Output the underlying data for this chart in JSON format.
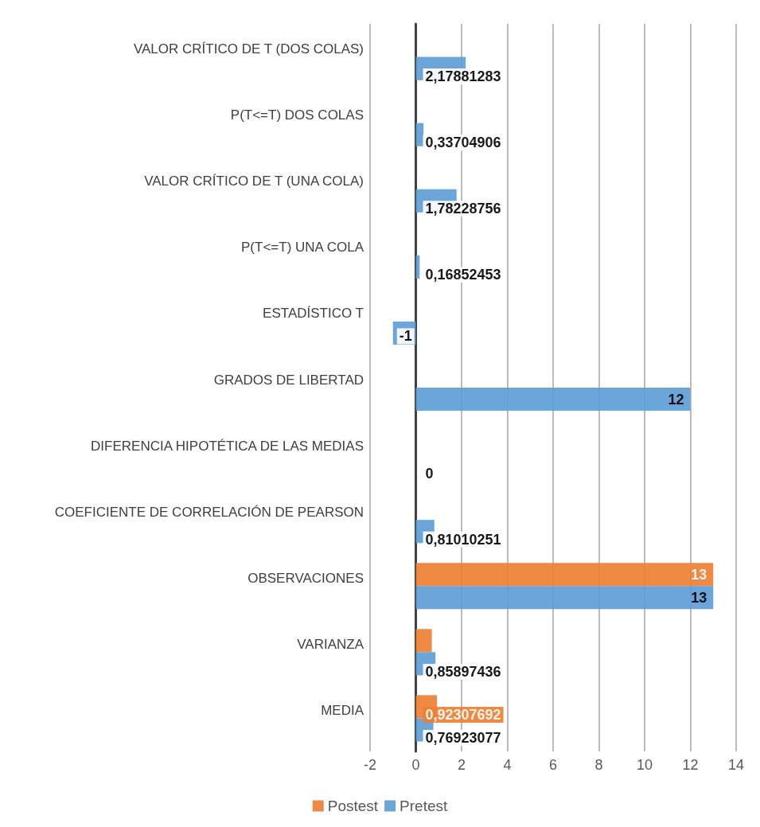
{
  "chart_data": {
    "type": "bar",
    "orientation": "horizontal",
    "categories": [
      "VALOR CRÍTICO DE T (DOS COLAS)",
      "P(T<=T) DOS COLAS",
      "VALOR CRÍTICO DE T (UNA COLA)",
      "P(T<=T) UNA COLA",
      "ESTADÍSTICO T",
      "GRADOS DE LIBERTAD",
      "DIFERENCIA HIPOTÉTICA DE LAS MEDIAS",
      "COEFICIENTE DE CORRELACIÓN DE PEARSON",
      "OBSERVACIONES",
      "VARIANZA",
      "MEDIA"
    ],
    "series": [
      {
        "name": "Postest",
        "color": "#ed7d31",
        "values": [
          null,
          null,
          null,
          null,
          null,
          null,
          null,
          null,
          13,
          0.7,
          0.92307692
        ],
        "value_labels": [
          null,
          null,
          null,
          null,
          null,
          null,
          null,
          null,
          "13",
          null,
          "0,92307692"
        ]
      },
      {
        "name": "Pretest",
        "color": "#5b9bd5",
        "values": [
          2.17881283,
          0.33704906,
          1.78228756,
          0.16852453,
          -1,
          12,
          0,
          0.81010251,
          13,
          0.85897436,
          0.76923077
        ],
        "value_labels": [
          "2,17881283",
          "0,33704906",
          "1,78228756",
          "0,16852453",
          "-1",
          "12",
          "0",
          "0,81010251",
          "13",
          "0,85897436",
          "0,76923077"
        ]
      }
    ],
    "xlim": [
      -2,
      14
    ],
    "xticks": [
      -2,
      0,
      2,
      4,
      6,
      8,
      10,
      12,
      14
    ],
    "grid": "x",
    "legend": "bottom"
  }
}
